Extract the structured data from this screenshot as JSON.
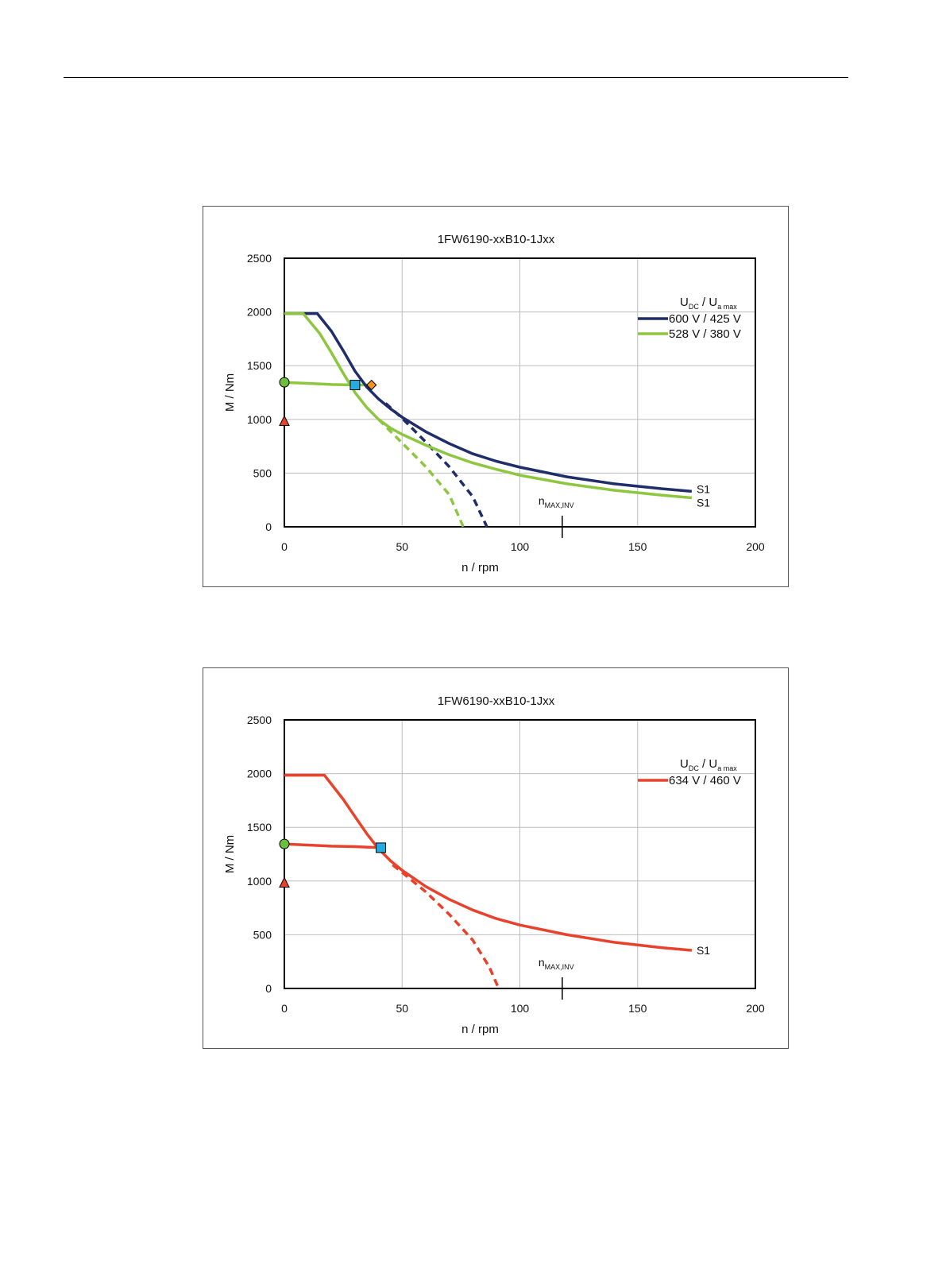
{
  "chart_data": [
    {
      "type": "line",
      "title": "1FW6190-xxB10-1Jxx",
      "xlabel": "n / rpm",
      "ylabel": "M / Nm",
      "xlim": [
        0,
        200
      ],
      "ylim": [
        0,
        2500
      ],
      "x_ticks": [
        "0",
        "50",
        "100",
        "150",
        "200"
      ],
      "y_ticks": [
        "0",
        "500",
        "1000",
        "1500",
        "2000",
        "2500"
      ],
      "grid": true,
      "legend_position": "top-right",
      "legend_header": {
        "u": "U",
        "dc_sub": "DC",
        "sep": "/",
        "u2": "U",
        "a_sub": "a max"
      },
      "nmax_label": {
        "base": "n",
        "sub": "MAX,INV"
      },
      "nmax_x": 118,
      "series": [
        {
          "name": "600 V / 425 V",
          "color": "#1f2d6b",
          "end_label": "S1",
          "peak": [
            [
              0,
              1985
            ],
            [
              14,
              1985
            ],
            [
              20,
              1820
            ],
            [
              25,
              1640
            ],
            [
              30,
              1450
            ],
            [
              35,
              1300
            ],
            [
              40,
              1190
            ],
            [
              45,
              1100
            ],
            [
              50,
              1020
            ],
            [
              60,
              885
            ],
            [
              70,
              775
            ],
            [
              80,
              680
            ],
            [
              90,
              610
            ],
            [
              100,
              555
            ],
            [
              120,
              465
            ],
            [
              140,
              400
            ],
            [
              160,
              355
            ],
            [
              173,
              330
            ]
          ],
          "dashed": [
            [
              43,
              1150
            ],
            [
              50,
              1010
            ],
            [
              60,
              790
            ],
            [
              70,
              560
            ],
            [
              80,
              280
            ],
            [
              86,
              0
            ]
          ]
        },
        {
          "name": "528 V / 380 V",
          "color": "#8dc63f",
          "end_label": "S1",
          "peak": [
            [
              0,
              1985
            ],
            [
              8,
              1985
            ],
            [
              15,
              1800
            ],
            [
              20,
              1620
            ],
            [
              25,
              1430
            ],
            [
              30,
              1250
            ],
            [
              35,
              1110
            ],
            [
              40,
              1000
            ],
            [
              45,
              920
            ],
            [
              50,
              860
            ],
            [
              60,
              760
            ],
            [
              70,
              670
            ],
            [
              80,
              595
            ],
            [
              90,
              535
            ],
            [
              100,
              480
            ],
            [
              120,
              400
            ],
            [
              140,
              340
            ],
            [
              160,
              295
            ],
            [
              173,
              270
            ]
          ],
          "dashed": [
            [
              40,
              1000
            ],
            [
              50,
              780
            ],
            [
              60,
              560
            ],
            [
              70,
              300
            ],
            [
              76,
              0
            ]
          ]
        }
      ],
      "s1_curve": {
        "color": "#8dc63f",
        "points": [
          [
            0,
            1345
          ],
          [
            10,
            1335
          ],
          [
            20,
            1325
          ],
          [
            30,
            1320
          ],
          [
            37,
            1320
          ]
        ]
      },
      "markers": [
        {
          "shape": "circle",
          "x": 0,
          "y": 1345,
          "color": "#6cbf3c"
        },
        {
          "shape": "triangle",
          "x": 0,
          "y": 980,
          "color": "#e8412c"
        },
        {
          "shape": "square",
          "x": 30,
          "y": 1320,
          "color": "#27aae1"
        },
        {
          "shape": "diamond",
          "x": 37,
          "y": 1320,
          "color": "#f7931e"
        }
      ]
    },
    {
      "type": "line",
      "title": "1FW6190-xxB10-1Jxx",
      "xlabel": "n / rpm",
      "ylabel": "M / Nm",
      "xlim": [
        0,
        200
      ],
      "ylim": [
        0,
        2500
      ],
      "x_ticks": [
        "0",
        "50",
        "100",
        "150",
        "200"
      ],
      "y_ticks": [
        "0",
        "500",
        "1000",
        "1500",
        "2000",
        "2500"
      ],
      "grid": true,
      "legend_position": "top-right",
      "legend_header": {
        "u": "U",
        "dc_sub": "DC",
        "sep": "/",
        "u2": "U",
        "a_sub": "a max"
      },
      "nmax_label": {
        "base": "n",
        "sub": "MAX,INV"
      },
      "nmax_x": 118,
      "series": [
        {
          "name": "634 V / 460 V",
          "color": "#e8412c",
          "end_label": "S1",
          "peak": [
            [
              0,
              1985
            ],
            [
              17,
              1985
            ],
            [
              25,
              1760
            ],
            [
              30,
              1600
            ],
            [
              35,
              1440
            ],
            [
              40,
              1300
            ],
            [
              45,
              1190
            ],
            [
              50,
              1100
            ],
            [
              60,
              950
            ],
            [
              70,
              830
            ],
            [
              80,
              730
            ],
            [
              90,
              650
            ],
            [
              100,
              590
            ],
            [
              120,
              500
            ],
            [
              140,
              430
            ],
            [
              160,
              380
            ],
            [
              173,
              355
            ]
          ],
          "dashed": [
            [
              46,
              1150
            ],
            [
              50,
              1080
            ],
            [
              60,
              900
            ],
            [
              70,
              690
            ],
            [
              80,
              450
            ],
            [
              87,
              200
            ],
            [
              91,
              0
            ]
          ]
        }
      ],
      "s1_curve": {
        "color": "#e8412c",
        "points": [
          [
            0,
            1345
          ],
          [
            10,
            1335
          ],
          [
            20,
            1325
          ],
          [
            30,
            1320
          ],
          [
            41,
            1310
          ]
        ]
      },
      "markers": [
        {
          "shape": "circle",
          "x": 0,
          "y": 1345,
          "color": "#6cbf3c"
        },
        {
          "shape": "triangle",
          "x": 0,
          "y": 980,
          "color": "#e8412c"
        },
        {
          "shape": "square",
          "x": 41,
          "y": 1310,
          "color": "#27aae1"
        }
      ]
    }
  ]
}
